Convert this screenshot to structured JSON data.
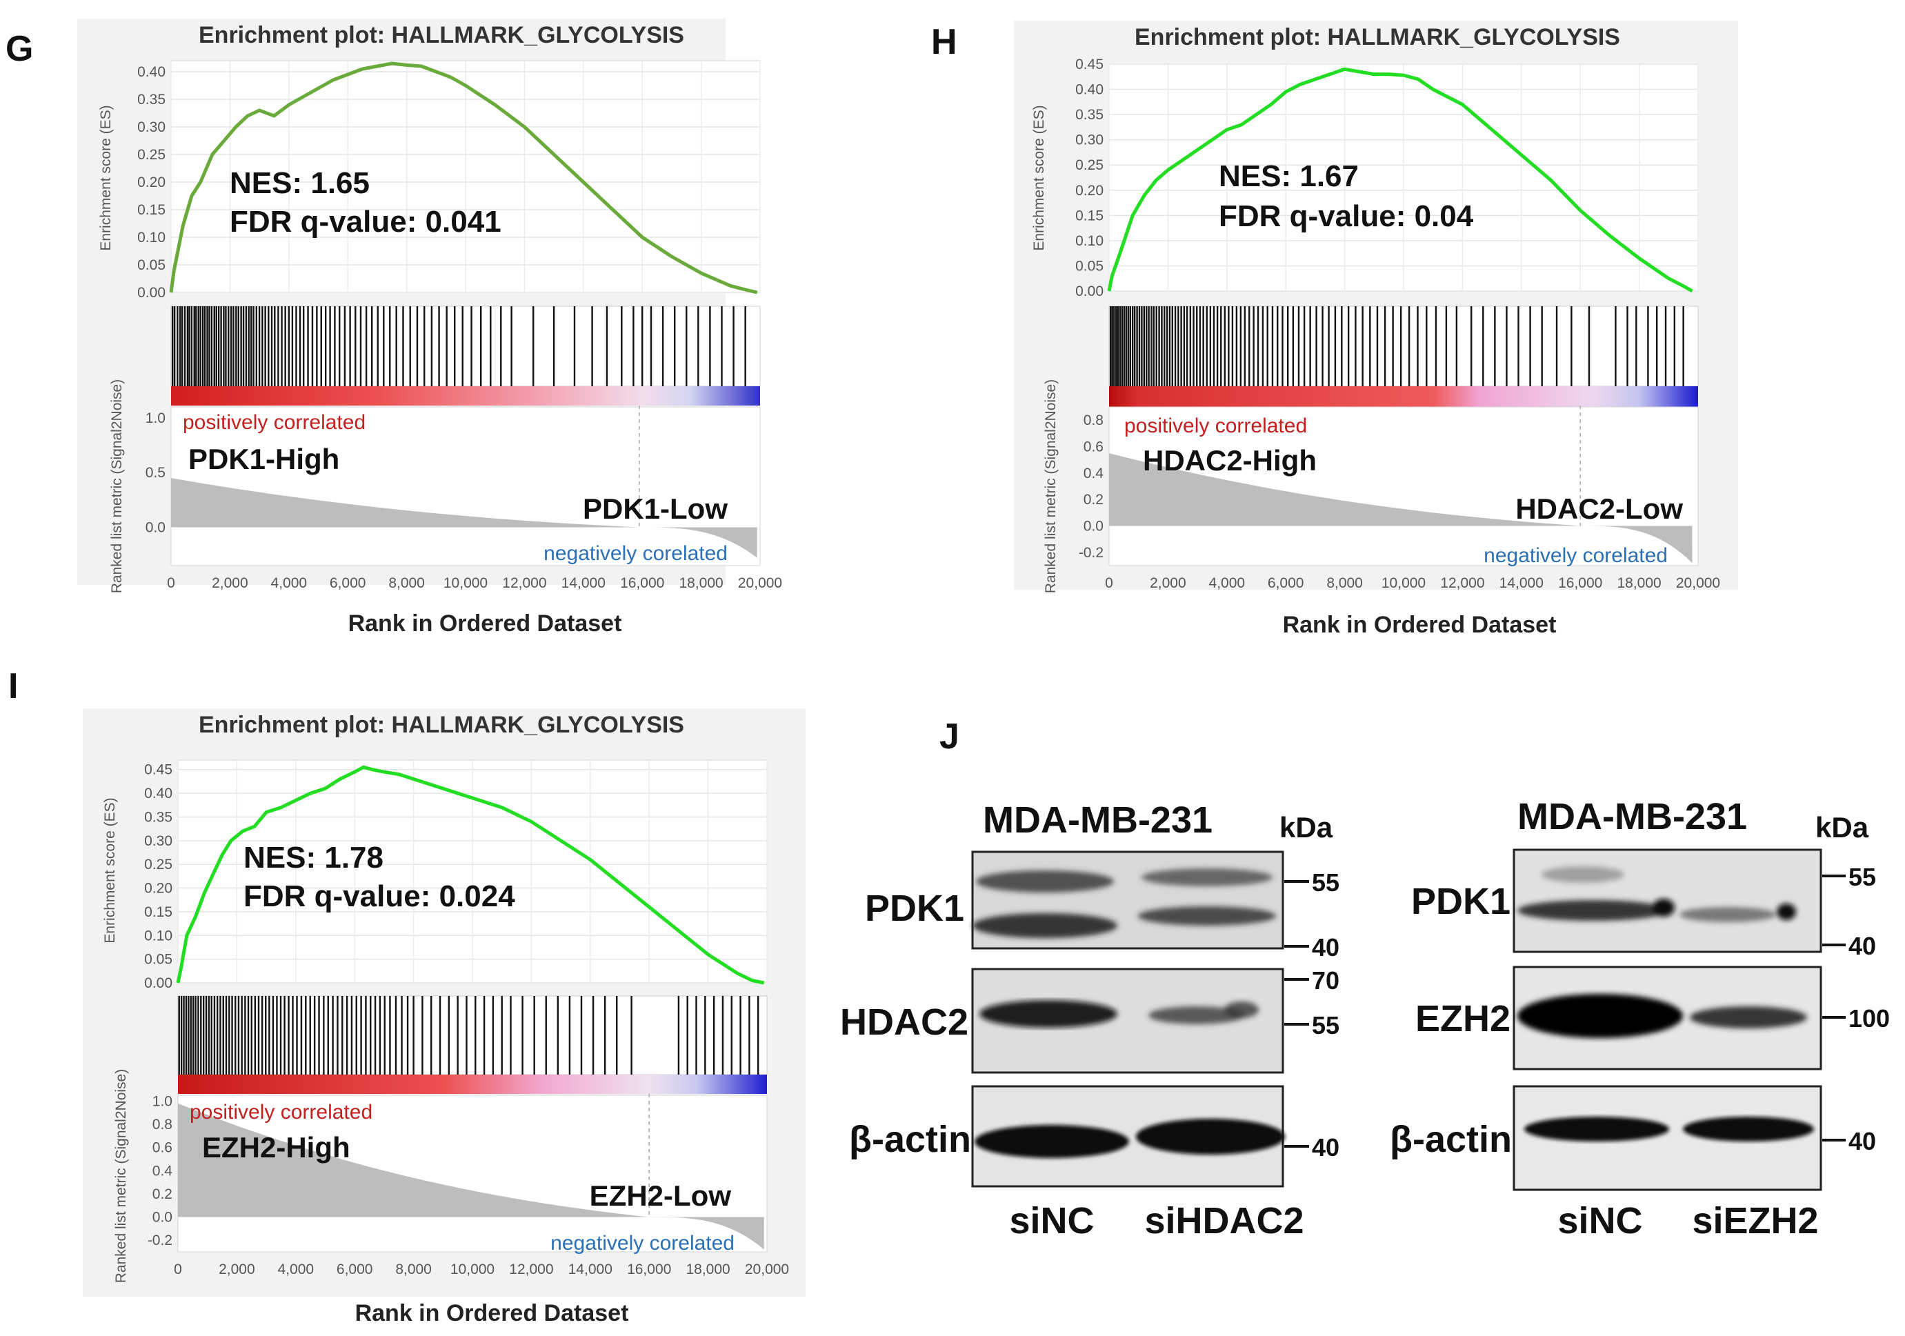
{
  "chart_data": [
    {
      "type": "line",
      "panel": "G",
      "title": "Enrichment plot: HALLMARK_GLYCOLYSIS",
      "ylabel": "Enrichment score (ES)",
      "ylabel2": "Ranked list metric (Signal2Noise)",
      "xlabel": "Rank in Ordered Dataset",
      "line_color": "#6aaa3a",
      "nes_text": "NES: 1.65",
      "fdr_text": "FDR q-value: 0.041",
      "high_label": "PDK1-High",
      "low_label": "PDK1-Low",
      "pos_label": "positively correlated",
      "neg_label": "negatively corelated",
      "x_ticks": [
        "0",
        "2,000",
        "4,000",
        "6,000",
        "8,000",
        "10,000",
        "12,000",
        "14,000",
        "16,000",
        "18,000",
        "20,000"
      ],
      "es_ticks": [
        "0.00",
        "0.05",
        "0.10",
        "0.15",
        "0.20",
        "0.25",
        "0.30",
        "0.35",
        "0.40"
      ],
      "es_ylim": [
        0,
        0.42
      ],
      "metric_ticks": [
        "1.0",
        "0.5",
        "0.0"
      ],
      "metric_ylim": [
        -0.35,
        1.1
      ],
      "xlim": [
        0,
        20000
      ],
      "x": [
        0,
        100,
        400,
        700,
        1000,
        1400,
        1800,
        2200,
        2600,
        3000,
        3500,
        4000,
        4500,
        5000,
        5500,
        6000,
        6500,
        7000,
        7500,
        8000,
        8500,
        9000,
        9500,
        10000,
        11000,
        12000,
        13000,
        14000,
        15000,
        16000,
        17000,
        18000,
        19000,
        19500,
        19900
      ],
      "es": [
        0,
        0.04,
        0.12,
        0.175,
        0.2,
        0.25,
        0.275,
        0.3,
        0.32,
        0.33,
        0.32,
        0.34,
        0.355,
        0.37,
        0.385,
        0.395,
        0.405,
        0.41,
        0.415,
        0.412,
        0.41,
        0.4,
        0.39,
        0.375,
        0.34,
        0.3,
        0.25,
        0.2,
        0.15,
        0.1,
        0.065,
        0.035,
        0.012,
        0.005,
        0
      ],
      "hits": [
        50,
        120,
        220,
        310,
        380,
        470,
        560,
        620,
        700,
        790,
        850,
        930,
        1000,
        1080,
        1150,
        1230,
        1300,
        1380,
        1470,
        1540,
        1620,
        1700,
        1790,
        1860,
        1950,
        2040,
        2120,
        2210,
        2290,
        2380,
        2460,
        2550,
        2640,
        2720,
        2800,
        2900,
        3000,
        3100,
        3200,
        3310,
        3420,
        3520,
        3640,
        3760,
        3880,
        4000,
        4120,
        4250,
        4380,
        4500,
        4650,
        4800,
        4950,
        5100,
        5250,
        5400,
        5560,
        5720,
        5900,
        6080,
        6260,
        6440,
        6630,
        6820,
        7020,
        7220,
        7430,
        7650,
        7880,
        8120,
        8360,
        8600,
        8850,
        9100,
        9360,
        9630,
        9900,
        10200,
        10520,
        10850,
        11200,
        11560,
        12300,
        13000,
        13700,
        14300,
        14800,
        15300,
        15700,
        16000,
        16300,
        16700,
        17100,
        17500,
        17900,
        18300,
        18700,
        19100,
        19500
      ],
      "dashed_x": 15900,
      "metric_start": 0.45,
      "metric_end": -0.28,
      "zero_cross": 15900
    },
    {
      "type": "line",
      "panel": "H",
      "title": "Enrichment plot: HALLMARK_GLYCOLYSIS",
      "ylabel": "Enrichment score (ES)",
      "ylabel2": "Ranked list metric (Signal2Noise)",
      "xlabel": "Rank in Ordered Dataset",
      "line_color": "#22dd22",
      "nes_text": "NES: 1.67",
      "fdr_text": "FDR q-value: 0.04",
      "high_label": "HDAC2-High",
      "low_label": "HDAC2-Low",
      "pos_label": "positively correlated",
      "neg_label": "negatively corelated",
      "x_ticks": [
        "0",
        "2,000",
        "4,000",
        "6,000",
        "8,000",
        "10,000",
        "12,000",
        "14,000",
        "16,000",
        "18,000",
        "20,000"
      ],
      "es_ticks": [
        "0.00",
        "0.05",
        "0.10",
        "0.15",
        "0.20",
        "0.25",
        "0.30",
        "0.35",
        "0.40",
        "0.45"
      ],
      "es_ylim": [
        0,
        0.45
      ],
      "metric_ticks": [
        "0.8",
        "0.6",
        "0.4",
        "0.2",
        "0.0",
        "-0.2"
      ],
      "metric_ylim": [
        -0.3,
        0.9
      ],
      "xlim": [
        0,
        20000
      ],
      "x": [
        0,
        100,
        400,
        800,
        1200,
        1600,
        2000,
        2500,
        3000,
        3500,
        4000,
        4500,
        5000,
        5500,
        6000,
        6500,
        7000,
        7500,
        8000,
        8500,
        9000,
        9500,
        10000,
        10500,
        11000,
        12000,
        13000,
        14000,
        15000,
        16000,
        17000,
        18000,
        19000,
        19500,
        19800
      ],
      "es": [
        0,
        0.03,
        0.08,
        0.15,
        0.19,
        0.22,
        0.24,
        0.26,
        0.28,
        0.3,
        0.32,
        0.33,
        0.35,
        0.37,
        0.395,
        0.41,
        0.42,
        0.43,
        0.44,
        0.435,
        0.43,
        0.43,
        0.428,
        0.42,
        0.4,
        0.37,
        0.32,
        0.27,
        0.22,
        0.16,
        0.11,
        0.065,
        0.025,
        0.01,
        0
      ],
      "hits": [
        50,
        110,
        170,
        240,
        300,
        370,
        440,
        510,
        580,
        650,
        720,
        800,
        870,
        950,
        1030,
        1110,
        1190,
        1270,
        1350,
        1440,
        1520,
        1610,
        1700,
        1790,
        1880,
        1970,
        2060,
        2150,
        2250,
        2350,
        2450,
        2550,
        2650,
        2760,
        2870,
        2980,
        3090,
        3200,
        3320,
        3440,
        3560,
        3680,
        3800,
        3930,
        4060,
        4190,
        4330,
        4470,
        4610,
        4760,
        4910,
        5060,
        5220,
        5380,
        5550,
        5720,
        5890,
        6070,
        6250,
        6440,
        6630,
        6830,
        7040,
        7250,
        7460,
        7680,
        7900,
        8130,
        8370,
        8610,
        8860,
        9110,
        9370,
        9640,
        9910,
        10190,
        10480,
        10780,
        11100,
        11450,
        11800,
        12300,
        12700,
        13100,
        13500,
        13900,
        14300,
        14700,
        15200,
        15700,
        16300,
        17200,
        17600,
        17900,
        18300,
        18600,
        18900,
        19200,
        19500
      ],
      "dashed_x": 16000,
      "metric_start": 0.55,
      "metric_end": -0.28,
      "zero_cross": 16000
    },
    {
      "type": "line",
      "panel": "I",
      "title": "Enrichment plot: HALLMARK_GLYCOLYSIS",
      "ylabel": "Enrichment score (ES)",
      "ylabel2": "Ranked list metric (Signal2Noise)",
      "xlabel": "Rank in Ordered Dataset",
      "line_color": "#22dd22",
      "nes_text": "NES: 1.78",
      "fdr_text": "FDR q-value: 0.024",
      "high_label": "EZH2-High",
      "low_label": "EZH2-Low",
      "pos_label": "positively correlated",
      "neg_label": "negatively corelated",
      "x_ticks": [
        "0",
        "2,000",
        "4,000",
        "6,000",
        "8,000",
        "10,000",
        "12,000",
        "14,000",
        "16,000",
        "18,000",
        "20,000"
      ],
      "es_ticks": [
        "0.00",
        "0.05",
        "0.10",
        "0.15",
        "0.20",
        "0.25",
        "0.30",
        "0.35",
        "0.40",
        "0.45"
      ],
      "es_ylim": [
        0,
        0.47
      ],
      "metric_ticks": [
        "1.0",
        "0.8",
        "0.6",
        "0.4",
        "0.2",
        "0.0",
        "-0.2"
      ],
      "metric_ylim": [
        -0.3,
        1.05
      ],
      "xlim": [
        0,
        20000
      ],
      "x": [
        0,
        100,
        300,
        600,
        900,
        1200,
        1500,
        1800,
        2200,
        2600,
        3000,
        3500,
        4000,
        4500,
        5000,
        5500,
        6000,
        6300,
        6600,
        7000,
        7500,
        8000,
        8500,
        9000,
        9500,
        10000,
        11000,
        12000,
        13000,
        14000,
        15000,
        16000,
        17000,
        18000,
        19000,
        19500,
        19900
      ],
      "es": [
        0,
        0.03,
        0.1,
        0.14,
        0.19,
        0.23,
        0.27,
        0.3,
        0.32,
        0.33,
        0.36,
        0.37,
        0.385,
        0.4,
        0.41,
        0.43,
        0.445,
        0.455,
        0.45,
        0.445,
        0.44,
        0.43,
        0.42,
        0.41,
        0.4,
        0.39,
        0.37,
        0.34,
        0.3,
        0.26,
        0.21,
        0.16,
        0.11,
        0.06,
        0.02,
        0.005,
        0
      ],
      "hits": [
        40,
        120,
        200,
        280,
        360,
        440,
        520,
        600,
        690,
        780,
        870,
        960,
        1050,
        1140,
        1240,
        1340,
        1440,
        1540,
        1640,
        1740,
        1840,
        1950,
        2060,
        2170,
        2280,
        2390,
        2500,
        2620,
        2740,
        2860,
        2980,
        3100,
        3230,
        3360,
        3490,
        3620,
        3760,
        3900,
        4040,
        4190,
        4340,
        4490,
        4640,
        4790,
        4950,
        5100,
        5260,
        5420,
        5580,
        5740,
        5900,
        6060,
        6220,
        6380,
        6540,
        6700,
        6860,
        7020,
        7200,
        7400,
        7600,
        7800,
        8000,
        8300,
        8600,
        8900,
        9200,
        9500,
        9800,
        10100,
        10400,
        10700,
        11000,
        11300,
        11700,
        12100,
        12500,
        12900,
        13300,
        13700,
        14100,
        14500,
        14900,
        15400,
        17000,
        17300,
        17600,
        17900,
        18200,
        18500,
        18800,
        19100,
        19400,
        19700
      ],
      "dashed_x": 16000,
      "metric_start": 0.98,
      "metric_end": -0.28,
      "zero_cross": 16000
    }
  ],
  "panel_labels": {
    "g": "G",
    "h": "H",
    "i": "I",
    "j": "J"
  },
  "blot_left": {
    "cell_line": "MDA-MB-231",
    "kda": "kDa",
    "proteins": [
      "PDK1",
      "HDAC2",
      "β-actin"
    ],
    "markers": [
      "55",
      "40",
      "70",
      "55",
      "40"
    ],
    "lanes": [
      "siNC",
      "siHDAC2"
    ]
  },
  "blot_right": {
    "cell_line": "MDA-MB-231",
    "kda": "kDa",
    "proteins": [
      "PDK1",
      "EZH2",
      "β-actin"
    ],
    "markers": [
      "55",
      "40",
      "100",
      "40"
    ],
    "lanes": [
      "siNC",
      "siEZH2"
    ]
  }
}
